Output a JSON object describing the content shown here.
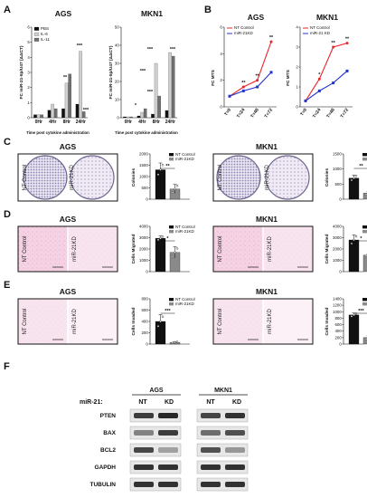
{
  "figure": {
    "panel_letters": [
      "A",
      "B",
      "C",
      "D",
      "E",
      "F"
    ],
    "cell_lines": [
      "AGS",
      "MKN1"
    ],
    "control_label": "NT Control",
    "kd_label": "miR-21KD",
    "kd_label_alt": "miR-21 KD",
    "panel_a_xlabel": "Time post cytokine administration",
    "panel_a_ylabel": "FC miR-21-5p/U47 (ΔΔCT)",
    "panel_b_ylabel": "FC MTS",
    "panel_c_ylabel": "Colonies",
    "panel_d_ylabel": "Cells Migrated",
    "panel_e_ylabel": "Cells Invaded",
    "western": {
      "row_label": "miR-21:",
      "lanes": [
        "NT",
        "KD",
        "NT",
        "KD"
      ],
      "proteins": [
        "PTEN",
        "BAX",
        "BCL2",
        "GAPDH",
        "TUBULIN"
      ]
    }
  },
  "colors": {
    "nt": "#e8262b",
    "kd": "#2233cc",
    "pbs": "#111111",
    "il6": "#cfcfcf",
    "il11": "#707070",
    "stain": "#f2c6dd",
    "plate": "#8f86b3"
  },
  "chart_data": [
    {
      "id": "A-AGS",
      "type": "bar",
      "title": "AGS",
      "categories": [
        "0Hr",
        "4Hr",
        "8Hr",
        "24Hr"
      ],
      "ylabel": "FC miR-21-5p/U47 (ΔΔCT)",
      "xlabel": "Time post cytokine administration",
      "ylim": [
        0,
        6
      ],
      "yticks": [
        0,
        1,
        2,
        3,
        4,
        5,
        6
      ],
      "legend": "top-left",
      "series": [
        {
          "name": "PBS",
          "values": [
            0.2,
            0.5,
            0.6,
            0.9
          ]
        },
        {
          "name": "IL-6",
          "values": [
            0.2,
            0.9,
            2.3,
            4.4
          ]
        },
        {
          "name": "IL-11",
          "values": [
            0.2,
            0.6,
            2.9,
            0.4
          ]
        }
      ],
      "annotations": [
        "**",
        "***",
        "***"
      ]
    },
    {
      "id": "A-MKN1",
      "type": "bar",
      "title": "MKN1",
      "categories": [
        "0Hr",
        "4Hr",
        "8Hr",
        "24Hr"
      ],
      "ylabel": "FC miR-21-5p/U47 (ΔΔCT)",
      "xlabel": "Time post cytokine administration",
      "ylim": [
        0,
        50
      ],
      "yticks": [
        0,
        10,
        20,
        30,
        40,
        50
      ],
      "series": [
        {
          "name": "PBS",
          "values": [
            0.5,
            1,
            2,
            4
          ]
        },
        {
          "name": "IL-6",
          "values": [
            0.5,
            3,
            30,
            36
          ]
        },
        {
          "name": "IL-11",
          "values": [
            0.5,
            5,
            12,
            34
          ]
        }
      ],
      "annotations": [
        "*",
        "***",
        "***",
        "***",
        "***"
      ]
    },
    {
      "id": "B-AGS",
      "type": "line",
      "title": "AGS",
      "x": [
        "T=0",
        "T=24",
        "T=48",
        "T=72"
      ],
      "ylabel": "FC MTS",
      "ylim": [
        0,
        6
      ],
      "yticks": [
        0,
        2,
        4,
        6
      ],
      "legend": "top-left",
      "series": [
        {
          "name": "NT Control",
          "values": [
            0.8,
            1.5,
            2.0,
            4.9
          ]
        },
        {
          "name": "miR-21KD",
          "values": [
            0.8,
            1.2,
            1.5,
            2.6
          ]
        }
      ],
      "annotations": [
        "**",
        "**",
        "**"
      ]
    },
    {
      "id": "B-MKN1",
      "type": "line",
      "title": "MKN1",
      "x": [
        "T=0",
        "T=24",
        "T=48",
        "T=72"
      ],
      "ylabel": "FC MTS",
      "ylim": [
        0,
        4
      ],
      "yticks": [
        0,
        1,
        2,
        3,
        4
      ],
      "legend": "top-left",
      "series": [
        {
          "name": "NT Control",
          "values": [
            0.3,
            1.4,
            3.0,
            3.2
          ]
        },
        {
          "name": "miR-21 KD",
          "values": [
            0.3,
            0.8,
            1.2,
            1.8
          ]
        }
      ],
      "annotations": [
        "*",
        "**",
        "**"
      ]
    },
    {
      "id": "C-AGS",
      "type": "bar",
      "ylabel": "Colonies",
      "categories": [
        "NT Control",
        "miR-21KD"
      ],
      "ylim": [
        0,
        2000
      ],
      "yticks": [
        0,
        500,
        1000,
        1500,
        2000
      ],
      "values": [
        1300,
        450
      ],
      "errors": [
        300,
        200
      ],
      "annotation": "**"
    },
    {
      "id": "C-MKN1",
      "type": "bar",
      "ylabel": "Colonies",
      "categories": [
        "NT Control",
        "miR-21KD"
      ],
      "ylim": [
        0,
        1500
      ],
      "yticks": [
        0,
        500,
        1000,
        1500
      ],
      "values": [
        700,
        200
      ],
      "errors": [
        100,
        60
      ],
      "annotation": "**"
    },
    {
      "id": "D-AGS",
      "type": "bar",
      "ylabel": "Cells Migrated",
      "categories": [
        "NT Control",
        "miR-21KD"
      ],
      "ylim": [
        0,
        4000
      ],
      "yticks": [
        0,
        1000,
        2000,
        3000,
        4000
      ],
      "values": [
        2950,
        1700
      ],
      "errors": [
        200,
        500
      ],
      "annotation": "*"
    },
    {
      "id": "D-MKN1",
      "type": "bar",
      "ylabel": "Cells Migrated",
      "categories": [
        "NT Control",
        "miR-21KD"
      ],
      "ylim": [
        0,
        4000
      ],
      "yticks": [
        0,
        1000,
        2000,
        3000,
        4000
      ],
      "values": [
        2800,
        1450
      ],
      "errors": [
        450,
        100
      ],
      "annotation": "*"
    },
    {
      "id": "E-AGS",
      "type": "bar",
      "ylabel": "Cells Invaded",
      "categories": [
        "NT Control",
        "miR-21KD"
      ],
      "ylim": [
        0,
        800
      ],
      "yticks": [
        0,
        200,
        400,
        600,
        800
      ],
      "values": [
        400,
        30
      ],
      "errors": [
        120,
        15
      ],
      "annotation": "***"
    },
    {
      "id": "E-MKN1",
      "type": "bar",
      "ylabel": "Cells Invaded",
      "categories": [
        "NT Control",
        "miR-21KD"
      ],
      "ylim": [
        0,
        1400
      ],
      "yticks": [
        0,
        200,
        400,
        600,
        800,
        1000,
        1200,
        1400
      ],
      "values": [
        900,
        200
      ],
      "errors": [
        60,
        60
      ],
      "annotation": "***"
    }
  ]
}
